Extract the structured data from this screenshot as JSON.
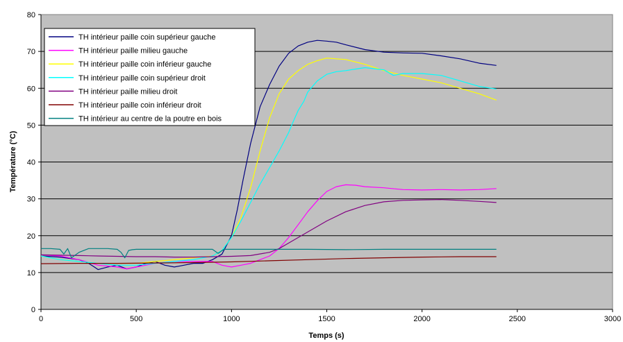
{
  "chart_data": {
    "type": "line",
    "title": "",
    "xlabel": "Temps (s)",
    "ylabel": "Température (°C)",
    "xlim": [
      0,
      3000
    ],
    "ylim": [
      0,
      80
    ],
    "xticks": [
      0,
      500,
      1000,
      1500,
      2000,
      2500,
      3000
    ],
    "yticks": [
      0,
      10,
      20,
      30,
      40,
      50,
      60,
      70,
      80
    ],
    "grid": "horizontal",
    "plot_background": "#c0c0c0",
    "legend_position": "top-left",
    "series": [
      {
        "name": "TH intérieur paille coin supérieur gauche",
        "color": "#000080",
        "x": [
          0,
          100,
          200,
          250,
          280,
          300,
          350,
          400,
          450,
          500,
          550,
          600,
          650,
          700,
          750,
          800,
          850,
          900,
          950,
          1000,
          1030,
          1060,
          1100,
          1150,
          1200,
          1250,
          1300,
          1350,
          1400,
          1450,
          1500,
          1550,
          1600,
          1700,
          1800,
          1900,
          2000,
          2100,
          2200,
          2300,
          2390
        ],
        "values": [
          14.5,
          14.2,
          13.5,
          12.5,
          11.5,
          10.8,
          11.5,
          12,
          11,
          11.5,
          12.5,
          13,
          12,
          11.5,
          12,
          12.5,
          12.5,
          13.5,
          15,
          20,
          27,
          35,
          45,
          55,
          61,
          66,
          69.5,
          71.5,
          72.5,
          73,
          72.8,
          72.5,
          71.8,
          70.5,
          69.8,
          69.6,
          69.5,
          68.8,
          68,
          66.8,
          66.2
        ]
      },
      {
        "name": "TH intérieur paille milieu gauche",
        "color": "#ff00ff",
        "x": [
          0,
          100,
          200,
          300,
          400,
          450,
          500,
          600,
          700,
          800,
          900,
          950,
          1000,
          1050,
          1100,
          1150,
          1200,
          1250,
          1300,
          1350,
          1400,
          1450,
          1500,
          1550,
          1600,
          1650,
          1700,
          1800,
          1900,
          2000,
          2100,
          2200,
          2300,
          2390
        ],
        "values": [
          14.8,
          14.5,
          13.5,
          12,
          11.5,
          11,
          11.5,
          12.5,
          13,
          13,
          13,
          12,
          11.5,
          12,
          12.5,
          13.5,
          14.5,
          16.5,
          19.5,
          23,
          26.5,
          29.5,
          32,
          33.3,
          33.8,
          33.7,
          33.3,
          33,
          32.5,
          32.4,
          32.5,
          32.4,
          32.5,
          32.8
        ]
      },
      {
        "name": "TH intérieur paille coin inférieur gauche",
        "color": "#ffff00",
        "x": [
          0,
          100,
          200,
          300,
          400,
          500,
          600,
          700,
          800,
          900,
          950,
          1000,
          1050,
          1100,
          1150,
          1200,
          1250,
          1300,
          1350,
          1400,
          1450,
          1500,
          1550,
          1600,
          1700,
          1800,
          1900,
          2000,
          2100,
          2200,
          2300,
          2390
        ],
        "values": [
          14.5,
          13.5,
          13,
          12.5,
          12.5,
          12.5,
          13,
          13.5,
          14,
          14.5,
          16,
          19.5,
          25,
          33,
          43,
          52,
          58.5,
          62.5,
          64.8,
          66.5,
          67.5,
          68.2,
          68,
          67.8,
          66.5,
          64.8,
          63.5,
          62.5,
          61.5,
          60,
          58.5,
          56.8
        ]
      },
      {
        "name": "TH intérieur paille coin supérieur droit",
        "color": "#00ffff",
        "x": [
          0,
          100,
          200,
          300,
          400,
          500,
          600,
          700,
          800,
          900,
          950,
          1000,
          1050,
          1100,
          1150,
          1200,
          1250,
          1300,
          1320,
          1350,
          1380,
          1400,
          1450,
          1500,
          1550,
          1600,
          1650,
          1700,
          1750,
          1800,
          1850,
          1900,
          2000,
          2100,
          2200,
          2300,
          2390
        ],
        "values": [
          14.5,
          13.5,
          13,
          12.5,
          12,
          12,
          12.5,
          13,
          13.5,
          14.5,
          16,
          19.5,
          24,
          29,
          34,
          38.5,
          43,
          48,
          50.5,
          54,
          56.5,
          59,
          62,
          63.8,
          64.5,
          64.8,
          65.2,
          65.6,
          65.3,
          65,
          63.5,
          64,
          64,
          63.5,
          62,
          60.5,
          59.8
        ]
      },
      {
        "name": "TH intérieur paille milieu droit",
        "color": "#800080",
        "x": [
          0,
          100,
          200,
          300,
          400,
          500,
          600,
          700,
          800,
          900,
          1000,
          1100,
          1200,
          1250,
          1300,
          1400,
          1500,
          1600,
          1700,
          1800,
          1900,
          2000,
          2100,
          2200,
          2300,
          2390
        ],
        "values": [
          14.8,
          14.7,
          14.6,
          14.5,
          14.4,
          14.3,
          14.3,
          14.2,
          14.2,
          14.3,
          14.4,
          14.6,
          15.5,
          16.5,
          18,
          21,
          24,
          26.5,
          28.2,
          29.2,
          29.6,
          29.7,
          29.8,
          29.6,
          29.3,
          29
        ]
      },
      {
        "name": "TH intérieur paille coin inférieur droit",
        "color": "#800000",
        "x": [
          0,
          200,
          400,
          600,
          800,
          1000,
          1200,
          1400,
          1600,
          1800,
          2000,
          2200,
          2390
        ],
        "values": [
          12.4,
          12.5,
          12.5,
          12.6,
          12.7,
          12.9,
          13.2,
          13.5,
          13.8,
          14,
          14.2,
          14.3,
          14.3
        ]
      },
      {
        "name": "TH intérieur au centre de la poutre en bois",
        "color": "#008080",
        "x": [
          0,
          50,
          100,
          120,
          140,
          160,
          200,
          250,
          300,
          350,
          400,
          420,
          440,
          460,
          480,
          500,
          600,
          700,
          800,
          900,
          930,
          960,
          1000,
          1200,
          1400,
          1600,
          1800,
          2000,
          2200,
          2390
        ],
        "values": [
          16.5,
          16.5,
          16.3,
          15,
          16.5,
          14,
          15.5,
          16.5,
          16.5,
          16.5,
          16.3,
          15.5,
          14,
          16,
          16.2,
          16.3,
          16.3,
          16.3,
          16.3,
          16.3,
          15.2,
          16.3,
          16.3,
          16.3,
          16.3,
          16.2,
          16.3,
          16.3,
          16.3,
          16.3
        ]
      }
    ]
  }
}
